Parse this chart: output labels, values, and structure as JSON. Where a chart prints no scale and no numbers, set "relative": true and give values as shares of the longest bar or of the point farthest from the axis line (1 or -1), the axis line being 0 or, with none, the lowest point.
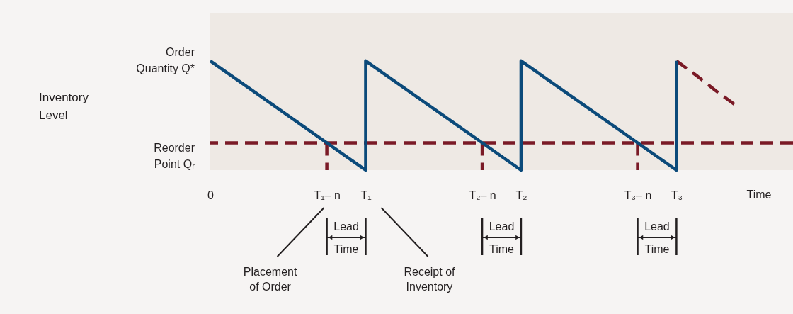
{
  "chart_data": {
    "type": "line",
    "relative": true,
    "xlabel": "Time",
    "categories": [
      "0",
      null,
      null,
      null,
      null,
      null,
      "T₁– n",
      null,
      "T₁",
      null,
      null,
      null,
      null,
      null,
      "T₂– n",
      null,
      "T₂",
      null,
      null,
      null,
      null,
      null,
      "T₃– n",
      null,
      "T₃",
      null,
      null,
      null,
      null,
      null,
      null
    ],
    "series": [
      {
        "color": "#0b4a7a",
        "x": [
          "0",
          "T₁",
          "T₁",
          "T₂",
          "T₂",
          "T₃",
          "T₃"
        ],
        "values": [
          1,
          0,
          1,
          0,
          1,
          0,
          1
        ]
      },
      {
        "color": "#7a1a26",
        "line_style": "dashed",
        "values": [
          null,
          null,
          null,
          null,
          null,
          null,
          null,
          null,
          null,
          null,
          null,
          null,
          null,
          null,
          null,
          null,
          null,
          null,
          null,
          null,
          null,
          null,
          null,
          null,
          1,
          0.87,
          0.73,
          0.6,
          null,
          null,
          null
        ]
      },
      {
        "color": "#7a1a26",
        "line_style": "dashed",
        "x": [
          "T₁– n",
          "T₁– n",
          "T₁– n",
          "T₂– n",
          "T₂– n",
          "T₂– n",
          "T₃– n",
          "T₃– n"
        ],
        "values": [
          0.25,
          0,
          null,
          0.25,
          0,
          null,
          0.25,
          0
        ]
      }
    ],
    "ref_lines": [
      {
        "axis": "y",
        "value": 0.25,
        "label": "Reorder Point Qᵣ",
        "color": "#7a1a26",
        "line_style": "dashed"
      }
    ],
    "annotations": [
      {
        "text": "Order Quantity Q*",
        "x": "0",
        "y": 1
      },
      "Inventory Level",
      "Placement of Order",
      "Receipt of Inventory",
      "Lead Time",
      "Lead Time",
      "Lead Time"
    ]
  }
}
